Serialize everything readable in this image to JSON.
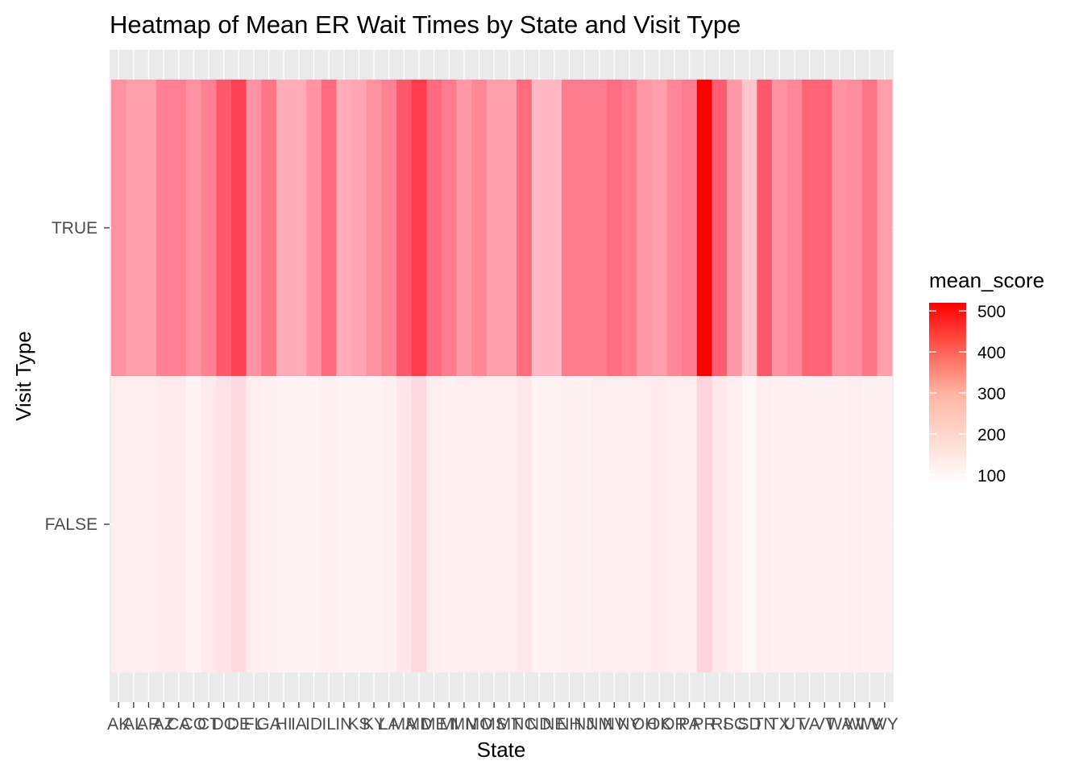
{
  "chart_data": {
    "type": "heatmap",
    "title": "Heatmap of Mean ER Wait Times by State and Visit Type",
    "xlabel": "State",
    "ylabel": "Visit Type",
    "x": [
      "AK",
      "AL",
      "AR",
      "AZ",
      "CA",
      "CO",
      "CT",
      "DC",
      "DE",
      "FL",
      "GA",
      "HI",
      "IA",
      "ID",
      "IL",
      "IN",
      "KS",
      "KY",
      "LA",
      "MA",
      "MD",
      "ME",
      "MI",
      "MN",
      "MO",
      "MS",
      "MT",
      "NC",
      "ND",
      "NE",
      "NH",
      "NJ",
      "NM",
      "NV",
      "NY",
      "OH",
      "OK",
      "OR",
      "PA",
      "PR",
      "RI",
      "SC",
      "SD",
      "TN",
      "TX",
      "UT",
      "VA",
      "VT",
      "WA",
      "WI",
      "WV",
      "WY"
    ],
    "y": [
      "FALSE",
      "TRUE"
    ],
    "values_true": [
      260,
      240,
      240,
      290,
      290,
      260,
      290,
      360,
      400,
      260,
      310,
      220,
      220,
      260,
      330,
      220,
      230,
      260,
      290,
      360,
      410,
      330,
      300,
      250,
      280,
      240,
      240,
      330,
      200,
      200,
      300,
      300,
      300,
      320,
      300,
      250,
      240,
      280,
      300,
      520,
      350,
      250,
      180,
      360,
      260,
      280,
      340,
      340,
      260,
      270,
      310,
      240
    ],
    "values_false": [
      110,
      110,
      110,
      115,
      115,
      100,
      115,
      130,
      140,
      110,
      105,
      100,
      100,
      100,
      105,
      100,
      100,
      100,
      105,
      120,
      140,
      110,
      105,
      110,
      110,
      110,
      110,
      120,
      100,
      100,
      105,
      105,
      110,
      110,
      110,
      110,
      115,
      110,
      110,
      150,
      120,
      110,
      95,
      110,
      105,
      105,
      105,
      105,
      105,
      110,
      105,
      105
    ],
    "legend": {
      "title": "mean_score",
      "ticks": [
        100,
        200,
        300,
        400,
        500
      ],
      "range": [
        80,
        520
      ],
      "low_color": "#ffffff",
      "high_color": "#ff0000"
    },
    "panel_background": "#ebebeb"
  }
}
